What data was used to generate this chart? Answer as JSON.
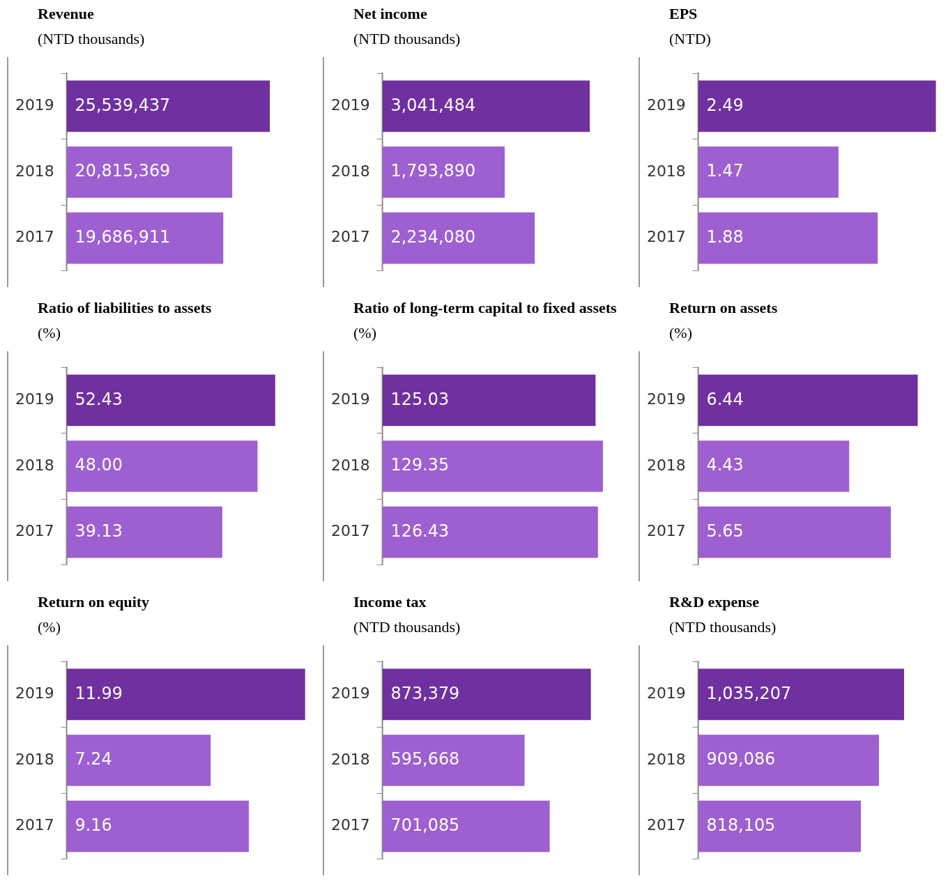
{
  "chart_data": [
    {
      "type": "bar",
      "orientation": "horizontal",
      "title": "Revenue",
      "subtitle": "(NTD thousands)",
      "categories": [
        "2019",
        "2018",
        "2017"
      ],
      "values": [
        25539437,
        20815369,
        19686911
      ],
      "colors": [
        "#7030a0",
        "#9e5fd0",
        "#9e5fd0"
      ],
      "data_labels": true,
      "value_labels": [
        "25,539,437",
        "20,815,369",
        "19,686,911"
      ],
      "tick_labels": "y",
      "grid": false,
      "legend": false
    },
    {
      "type": "bar",
      "orientation": "horizontal",
      "title": "Net income",
      "subtitle": "(NTD thousands)",
      "categories": [
        "2019",
        "2018",
        "2017"
      ],
      "values": [
        3041484,
        1793890,
        2234080
      ],
      "colors": [
        "#7030a0",
        "#9e5fd0",
        "#9e5fd0"
      ],
      "data_labels": true,
      "value_labels": [
        "3,041,484",
        "1,793,890",
        "2,234,080"
      ],
      "tick_labels": "y",
      "grid": false,
      "legend": false
    },
    {
      "type": "bar",
      "orientation": "horizontal",
      "title": "EPS",
      "subtitle": "(NTD)",
      "categories": [
        "2019",
        "2018",
        "2017"
      ],
      "values": [
        2.49,
        1.47,
        1.88
      ],
      "colors": [
        "#7030a0",
        "#9e5fd0",
        "#9e5fd0"
      ],
      "data_labels": true,
      "tick_labels": "y",
      "grid": false,
      "legend": false
    },
    {
      "type": "bar",
      "orientation": "horizontal",
      "title": "Ratio of liabilities to assets",
      "subtitle": "(%)",
      "categories": [
        "2019",
        "2018",
        "2017"
      ],
      "values": [
        52.43,
        48.0,
        39.13
      ],
      "colors": [
        "#7030a0",
        "#9e5fd0",
        "#9e5fd0"
      ],
      "data_labels": true,
      "value_labels": [
        "52.43",
        "48.00",
        "39.13"
      ],
      "tick_labels": "y",
      "grid": false,
      "legend": false
    },
    {
      "type": "bar",
      "orientation": "horizontal",
      "title": "Ratio of long-term capital to fixed assets",
      "subtitle": "(%)",
      "categories": [
        "2019",
        "2018",
        "2017"
      ],
      "values": [
        125.03,
        129.35,
        126.43
      ],
      "colors": [
        "#7030a0",
        "#9e5fd0",
        "#9e5fd0"
      ],
      "data_labels": true,
      "tick_labels": "y",
      "grid": false,
      "legend": false
    },
    {
      "type": "bar",
      "orientation": "horizontal",
      "title": "Return on assets",
      "subtitle": "(%)",
      "categories": [
        "2019",
        "2018",
        "2017"
      ],
      "values": [
        6.44,
        4.43,
        5.65
      ],
      "colors": [
        "#7030a0",
        "#9e5fd0",
        "#9e5fd0"
      ],
      "data_labels": true,
      "tick_labels": "y",
      "grid": false,
      "legend": false
    },
    {
      "type": "bar",
      "orientation": "horizontal",
      "title": "Return on equity",
      "subtitle": "(%)",
      "categories": [
        "2019",
        "2018",
        "2017"
      ],
      "values": [
        11.99,
        7.24,
        9.16
      ],
      "colors": [
        "#7030a0",
        "#9e5fd0",
        "#9e5fd0"
      ],
      "data_labels": true,
      "tick_labels": "y",
      "grid": false,
      "legend": false
    },
    {
      "type": "bar",
      "orientation": "horizontal",
      "title": "Income tax",
      "subtitle": "(NTD thousands)",
      "categories": [
        "2019",
        "2018",
        "2017"
      ],
      "values": [
        873379,
        595668,
        701085
      ],
      "colors": [
        "#7030a0",
        "#9e5fd0",
        "#9e5fd0"
      ],
      "data_labels": true,
      "value_labels": [
        "873,379",
        "595,668",
        "701,085"
      ],
      "tick_labels": "y",
      "grid": false,
      "legend": false
    },
    {
      "type": "bar",
      "orientation": "horizontal",
      "title": "R&D expense",
      "subtitle": "(NTD thousands)",
      "categories": [
        "2019",
        "2018",
        "2017"
      ],
      "values": [
        1035207,
        909086,
        818105
      ],
      "colors": [
        "#7030a0",
        "#9e5fd0",
        "#9e5fd0"
      ],
      "data_labels": true,
      "value_labels": [
        "1,035,207",
        "909,086",
        "818,105"
      ],
      "tick_labels": "y",
      "grid": false,
      "legend": false
    }
  ]
}
